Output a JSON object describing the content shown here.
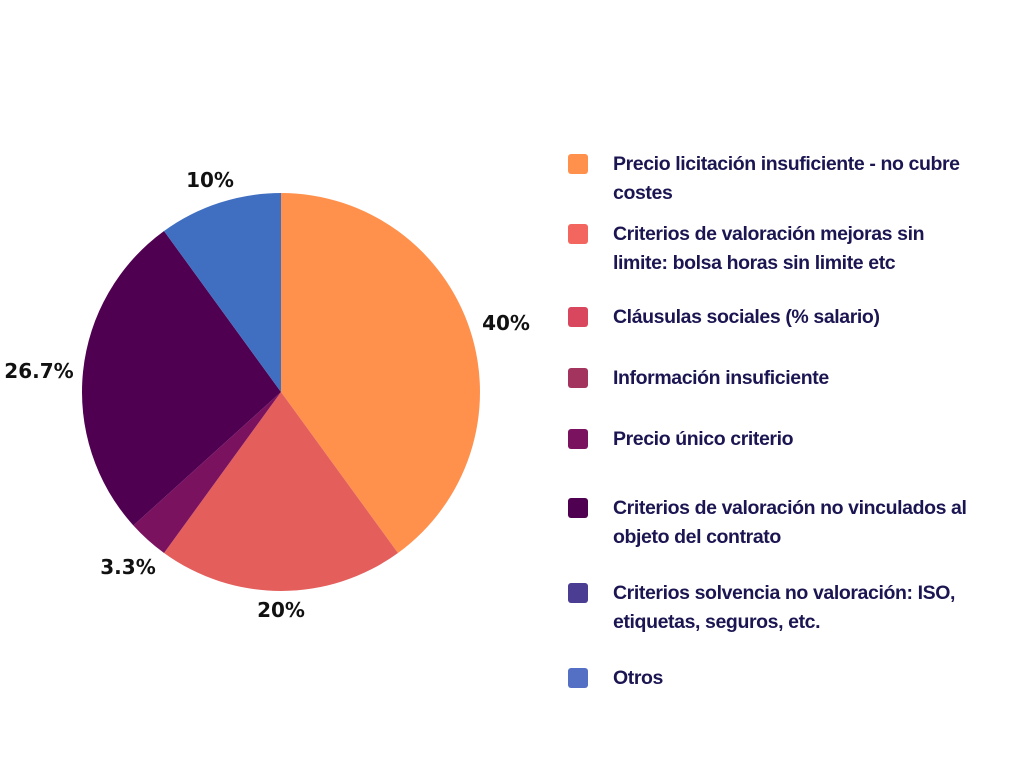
{
  "chart_data": {
    "type": "pie",
    "title": "",
    "start_angle_deg": 0,
    "direction": "clockwise",
    "slices": [
      {
        "label": "Precio licitación insuficiente - no cubre costes",
        "value": 40,
        "display": "40%",
        "color": "#ff914d"
      },
      {
        "label": "Criterios de valoración mejoras sin limite: bolsa horas sin limite etc",
        "value": 20,
        "display": "20%",
        "color": "#e45e5c"
      },
      {
        "label": "Cláusulas sociales (% salario)",
        "value": 0,
        "display": "",
        "color": "#d9475e"
      },
      {
        "label": "Información insuficiente",
        "value": 0,
        "display": "",
        "color": "#a3345e"
      },
      {
        "label": "Precio único criterio",
        "value": 3.3,
        "display": "3.3%",
        "color": "#7b1260"
      },
      {
        "label": "Criterios de valoración no vinculados al objeto del contrato",
        "value": 26.7,
        "display": "26.7%",
        "color": "#4f0050"
      },
      {
        "label": "Criterios solvencia no valoración: ISO, etiquetas, seguros, etc.",
        "value": 0,
        "display": "",
        "color": "#4b3d92"
      },
      {
        "label": "Otros",
        "value": 10,
        "display": "10%",
        "color": "#406fc2"
      }
    ],
    "legend_position": "right"
  },
  "legend": {
    "items": [
      {
        "lines": [
          "Precio licitación insuficiente - no cubre",
          "costes"
        ],
        "color": "#ff914d"
      },
      {
        "lines": [
          "Criterios de valoración mejoras sin",
          "limite: bolsa horas sin limite etc"
        ],
        "color": "#f2665f"
      },
      {
        "lines": [
          "Cláusulas sociales (% salario)"
        ],
        "color": "#d9475e"
      },
      {
        "lines": [
          "Información insuficiente"
        ],
        "color": "#a3345e"
      },
      {
        "lines": [
          "Precio único criterio"
        ],
        "color": "#7b1260"
      },
      {
        "lines": [
          "Criterios de valoración no vinculados al",
          "objeto del contrato"
        ],
        "color": "#4f0050"
      },
      {
        "lines": [
          "Criterios solvencia no valoración: ISO,",
          "etiquetas, seguros, etc."
        ],
        "color": "#4b3d92"
      },
      {
        "lines": [
          "Otros"
        ],
        "color": "#5470c4"
      }
    ]
  }
}
